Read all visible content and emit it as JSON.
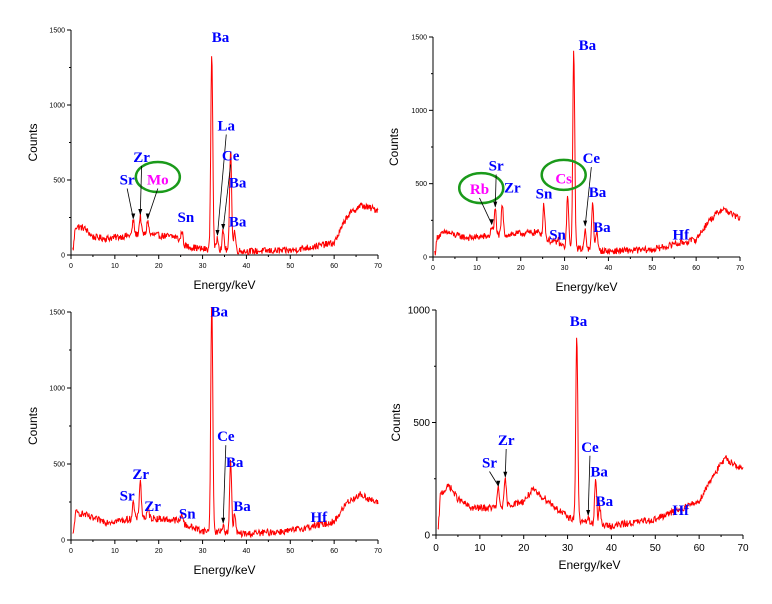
{
  "colors": {
    "spectrum": "#ff0000",
    "element_label": "#0000ff",
    "highlight_label": "#ff00ff",
    "circle": "#1a9a1a",
    "axis": "#000000"
  },
  "chart_data": [
    {
      "type": "line",
      "xlabel": "Energy/keV",
      "ylabel": "Counts",
      "xlim": [
        0,
        70
      ],
      "ylim": [
        0,
        1500
      ],
      "xticks": [
        "0",
        "10",
        "20",
        "30",
        "40",
        "50",
        "60",
        "70"
      ],
      "yticks": [
        "0",
        "500",
        "1000",
        "1500"
      ],
      "grid": false,
      "baseline": {
        "x": [
          0.5,
          1,
          3,
          5,
          8,
          12,
          16,
          20,
          24,
          26,
          30,
          35,
          40,
          50,
          60,
          63,
          66,
          70
        ],
        "y": [
          40,
          190,
          180,
          120,
          110,
          125,
          140,
          130,
          120,
          60,
          40,
          35,
          25,
          30,
          80,
          260,
          330,
          300
        ]
      },
      "peaks": [
        {
          "label": "Sr",
          "x": 14.2,
          "y": 230,
          "label_x": 12.8,
          "label_y": 470
        },
        {
          "label": "Zr",
          "x": 15.8,
          "y": 260,
          "label_x": 16.1,
          "label_y": 620
        },
        {
          "label": "Mo",
          "x": 17.5,
          "y": 230,
          "label_x": 19.8,
          "label_y": 470,
          "highlight": true
        },
        {
          "label": "Sn",
          "x": 25.3,
          "y": 160,
          "label_x": 26.2,
          "label_y": 220
        },
        {
          "label": "Ba",
          "x": 32.1,
          "y": 1350,
          "label_x": 34.1,
          "label_y": 1420
        },
        {
          "label": "La",
          "x": 33.4,
          "y": 120,
          "label_x": 35.4,
          "label_y": 830
        },
        {
          "label": "Ce",
          "x": 34.7,
          "y": 160,
          "label_x": 36.4,
          "label_y": 630
        },
        {
          "label": "Ba",
          "x": 36.4,
          "y": 720,
          "label_x": 38.0,
          "label_y": 450
        },
        {
          "label": "Ba",
          "x": 37.3,
          "y": 160,
          "label_x": 38.0,
          "label_y": 190
        }
      ],
      "circles": [
        {
          "x": 19.8,
          "y": 520
        }
      ]
    },
    {
      "type": "line",
      "xlabel": "Energy/keV",
      "ylabel": "Counts",
      "xlim": [
        0,
        70
      ],
      "ylim": [
        0,
        1500
      ],
      "xticks": [
        "0",
        "10",
        "20",
        "30",
        "40",
        "50",
        "60",
        "70"
      ],
      "yticks": [
        "0",
        "500",
        "1000",
        "1500"
      ],
      "grid": false,
      "baseline": {
        "x": [
          0.5,
          1,
          3,
          5,
          8,
          12,
          16,
          20,
          24,
          26,
          30,
          35,
          40,
          50,
          60,
          63,
          66,
          70
        ],
        "y": [
          30,
          140,
          170,
          150,
          130,
          140,
          150,
          160,
          170,
          120,
          70,
          50,
          40,
          50,
          120,
          250,
          330,
          260
        ]
      },
      "peaks": [
        {
          "label": "Rb",
          "x": 13.4,
          "y": 210,
          "label_x": 10.6,
          "label_y": 430,
          "highlight": true
        },
        {
          "label": "Sr",
          "x": 14.2,
          "y": 330,
          "label_x": 14.4,
          "label_y": 590
        },
        {
          "label": "Zr",
          "x": 15.8,
          "y": 360,
          "label_x": 18.1,
          "label_y": 440
        },
        {
          "label": "Sn",
          "x": 25.3,
          "y": 360,
          "label_x": 25.3,
          "label_y": 400
        },
        {
          "label": "Sn",
          "x": 28.5,
          "y": 120,
          "label_x": 28.4,
          "label_y": 120
        },
        {
          "label": "Cs",
          "x": 30.7,
          "y": 420,
          "label_x": 29.8,
          "label_y": 500,
          "highlight": true
        },
        {
          "label": "Ba",
          "x": 32.1,
          "y": 1400,
          "label_x": 35.2,
          "label_y": 1410
        },
        {
          "label": "Ce",
          "x": 34.7,
          "y": 200,
          "label_x": 36.1,
          "label_y": 640
        },
        {
          "label": "Ba",
          "x": 36.4,
          "y": 380,
          "label_x": 37.5,
          "label_y": 410
        },
        {
          "label": "Ba",
          "x": 37.3,
          "y": 180,
          "label_x": 38.5,
          "label_y": 170
        },
        {
          "label": "Hf",
          "x": 55.0,
          "y": 100,
          "label_x": 56.5,
          "label_y": 120
        }
      ],
      "circles": [
        {
          "x": 11.0,
          "y": 470
        },
        {
          "x": 29.8,
          "y": 560
        }
      ]
    },
    {
      "type": "line",
      "xlabel": "Energy/keV",
      "ylabel": "Counts",
      "xlim": [
        0,
        70
      ],
      "ylim": [
        0,
        1500
      ],
      "xticks": [
        "0",
        "10",
        "20",
        "30",
        "40",
        "50",
        "60",
        "70"
      ],
      "yticks": [
        "0",
        "500",
        "1000",
        "1500"
      ],
      "grid": false,
      "baseline": {
        "x": [
          0.5,
          1,
          3,
          5,
          8,
          12,
          16,
          20,
          24,
          26,
          30,
          35,
          40,
          50,
          60,
          63,
          66,
          70
        ],
        "y": [
          30,
          180,
          170,
          140,
          120,
          130,
          150,
          140,
          130,
          100,
          60,
          50,
          40,
          60,
          120,
          250,
          300,
          240
        ]
      },
      "peaks": [
        {
          "label": "Sr",
          "x": 14.2,
          "y": 250,
          "label_x": 12.8,
          "label_y": 260
        },
        {
          "label": "Zr",
          "x": 15.8,
          "y": 400,
          "label_x": 15.9,
          "label_y": 400
        },
        {
          "label": "Zr",
          "x": 17.6,
          "y": 200,
          "label_x": 18.6,
          "label_y": 190
        },
        {
          "label": "Sn",
          "x": 25.3,
          "y": 180,
          "label_x": 26.5,
          "label_y": 140
        },
        {
          "label": "Ba",
          "x": 32.1,
          "y": 1600,
          "label_x": 33.8,
          "label_y": 1470
        },
        {
          "label": "Ce",
          "x": 34.7,
          "y": 100,
          "label_x": 35.3,
          "label_y": 650
        },
        {
          "label": "Ba",
          "x": 36.4,
          "y": 520,
          "label_x": 37.3,
          "label_y": 480
        },
        {
          "label": "Ba",
          "x": 37.3,
          "y": 170,
          "label_x": 39.0,
          "label_y": 190
        },
        {
          "label": "Hf",
          "x": 55.0,
          "y": 90,
          "label_x": 56.5,
          "label_y": 120
        }
      ],
      "circles": []
    },
    {
      "type": "line",
      "xlabel": "Energy/keV",
      "ylabel": "Counts",
      "xlim": [
        0,
        70
      ],
      "ylim": [
        0,
        1000
      ],
      "xticks": [
        "0",
        "10",
        "20",
        "30",
        "40",
        "50",
        "60",
        "70"
      ],
      "yticks": [
        "0",
        "500",
        "1000"
      ],
      "grid": false,
      "baseline": {
        "x": [
          0.5,
          1,
          3,
          5,
          8,
          12,
          16,
          20,
          22,
          25,
          28,
          30,
          35,
          40,
          50,
          60,
          63,
          66,
          70
        ],
        "y": [
          20,
          180,
          220,
          160,
          120,
          120,
          130,
          150,
          200,
          160,
          110,
          80,
          50,
          40,
          70,
          150,
          260,
          340,
          290
        ]
      },
      "peaks": [
        {
          "label": "Sr",
          "x": 14.2,
          "y": 210,
          "label_x": 12.2,
          "label_y": 300
        },
        {
          "label": "Zr",
          "x": 15.8,
          "y": 250,
          "label_x": 16.0,
          "label_y": 400
        },
        {
          "label": "Ba",
          "x": 32.1,
          "y": 890,
          "label_x": 32.5,
          "label_y": 930
        },
        {
          "label": "Ce",
          "x": 34.7,
          "y": 80,
          "label_x": 35.1,
          "label_y": 370
        },
        {
          "label": "Ba",
          "x": 36.4,
          "y": 260,
          "label_x": 37.2,
          "label_y": 260
        },
        {
          "label": "Ba",
          "x": 37.3,
          "y": 130,
          "label_x": 38.4,
          "label_y": 130
        },
        {
          "label": "Hf",
          "x": 55.0,
          "y": 70,
          "label_x": 55.8,
          "label_y": 90
        }
      ],
      "circles": []
    }
  ]
}
